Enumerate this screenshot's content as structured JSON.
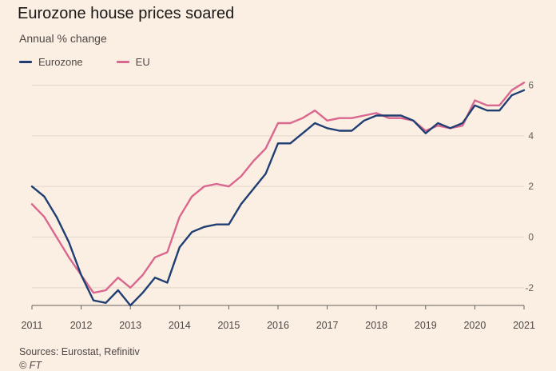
{
  "header": {
    "title": "Eurozone house prices soared",
    "subtitle": "Annual % change"
  },
  "footer": {
    "source": "Sources: Eurostat, Refinitiv",
    "credit": "© FT"
  },
  "chart_data": {
    "type": "line",
    "ylabel": "Annual % change",
    "ylim": [
      -2.7,
      6.3
    ],
    "xlim": [
      2011,
      2021
    ],
    "y_ticks": [
      -2,
      0,
      2,
      4,
      6
    ],
    "x_ticks": [
      "2011",
      "2012",
      "2013",
      "2014",
      "2015",
      "2016",
      "2017",
      "2018",
      "2019",
      "2020",
      "2021"
    ],
    "grid": true,
    "legend_position": "top-left",
    "x": [
      2011.0,
      2011.25,
      2011.5,
      2011.75,
      2012.0,
      2012.25,
      2012.5,
      2012.75,
      2013.0,
      2013.25,
      2013.5,
      2013.75,
      2014.0,
      2014.25,
      2014.5,
      2014.75,
      2015.0,
      2015.25,
      2015.5,
      2015.75,
      2016.0,
      2016.25,
      2016.5,
      2016.75,
      2017.0,
      2017.25,
      2017.5,
      2017.75,
      2018.0,
      2018.25,
      2018.5,
      2018.75,
      2019.0,
      2019.25,
      2019.5,
      2019.75,
      2020.0,
      2020.25,
      2020.5,
      2020.75,
      2021.0
    ],
    "series": [
      {
        "name": "Eurozone",
        "color": "#1f3f73",
        "values": [
          2.0,
          1.6,
          0.8,
          -0.2,
          -1.5,
          -2.5,
          -2.6,
          -2.1,
          -2.7,
          -2.2,
          -1.6,
          -1.8,
          -0.4,
          0.2,
          0.4,
          0.5,
          0.5,
          1.3,
          1.9,
          2.5,
          3.7,
          3.7,
          4.1,
          4.5,
          4.3,
          4.2,
          4.2,
          4.6,
          4.8,
          4.8,
          4.8,
          4.6,
          4.1,
          4.5,
          4.3,
          4.5,
          5.2,
          5.0,
          5.0,
          5.6,
          5.8
        ]
      },
      {
        "name": "EU",
        "color": "#d9678f",
        "values": [
          1.3,
          0.8,
          0.0,
          -0.8,
          -1.5,
          -2.2,
          -2.1,
          -1.6,
          -2.0,
          -1.5,
          -0.8,
          -0.6,
          0.8,
          1.6,
          2.0,
          2.1,
          2.0,
          2.4,
          3.0,
          3.5,
          4.5,
          4.5,
          4.7,
          5.0,
          4.6,
          4.7,
          4.7,
          4.8,
          4.9,
          4.7,
          4.7,
          4.6,
          4.2,
          4.4,
          4.3,
          4.4,
          5.4,
          5.2,
          5.2,
          5.8,
          6.1
        ]
      }
    ]
  }
}
